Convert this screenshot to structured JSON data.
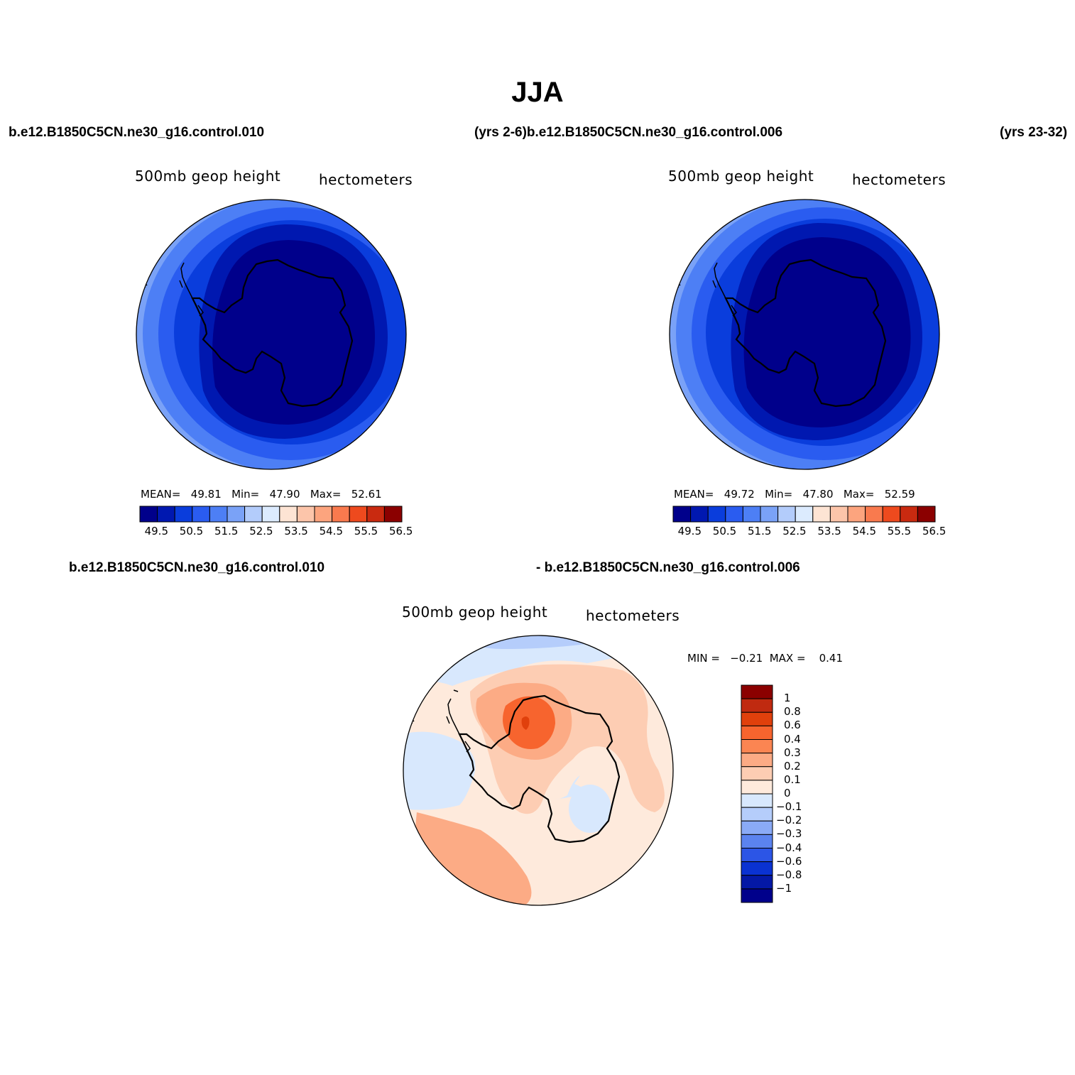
{
  "title": "JJA",
  "header_row1": {
    "case1": "b.e12.B1850C5CN.ne30_g16.control.010",
    "years_case2": "(yrs 2-6)b.e12.B1850C5CN.ne30_g16.control.006",
    "years_right": "(yrs 23-32)"
  },
  "panel1": {
    "variable": "500mb  geop  height",
    "units": "hectometers",
    "stats": {
      "mean_label": "MEAN=",
      "mean": "49.81",
      "min_label": "Min=",
      "min": "47.90",
      "max_label": "Max=",
      "max": "52.61"
    }
  },
  "panel2": {
    "variable": "500mb  geop  height",
    "units": "hectometers",
    "stats": {
      "mean_label": "MEAN=",
      "mean": "49.72",
      "min_label": "Min=",
      "min": "47.80",
      "max_label": "Max=",
      "max": "52.59"
    }
  },
  "colorbar_h": {
    "colors": [
      "#00008b",
      "#0018b0",
      "#0a3ddc",
      "#2a5cf0",
      "#4d7ff5",
      "#7aa2f7",
      "#b3ccfb",
      "#dcebfe",
      "#fde4d4",
      "#fcc5aa",
      "#fca47e",
      "#f97a4e",
      "#ee4a1e",
      "#c92a10",
      "#8b0000"
    ],
    "ticks": [
      "49.5",
      "50.5",
      "51.5",
      "52.5",
      "53.5",
      "54.5",
      "55.5",
      "56.5"
    ]
  },
  "header_row2": {
    "case1": "b.e12.B1850C5CN.ne30_g16.control.010",
    "case2": "- b.e12.B1850C5CN.ne30_g16.control.006"
  },
  "panel3": {
    "variable": "500mb  geop  height",
    "units": "hectometers",
    "minmax": "MIN =   −0.21  MAX =    0.41"
  },
  "colorbar_v": {
    "colors_top_to_bottom": [
      "#8b0000",
      "#c02a10",
      "#e0400c",
      "#f7642e",
      "#fb8552",
      "#fcab85",
      "#fdcdb3",
      "#feeadc",
      "#d8e8fd",
      "#b5cdfb",
      "#8aaaf6",
      "#5b83ef",
      "#2c55e6",
      "#0a32d2",
      "#0418a6",
      "#00008b"
    ],
    "labels_top_to_bottom": [
      "1",
      "0.8",
      "0.6",
      "0.4",
      "0.3",
      "0.2",
      "0.1",
      "0",
      "−0.1",
      "−0.2",
      "−0.3",
      "−0.4",
      "−0.6",
      "−0.8",
      "−1"
    ]
  }
}
